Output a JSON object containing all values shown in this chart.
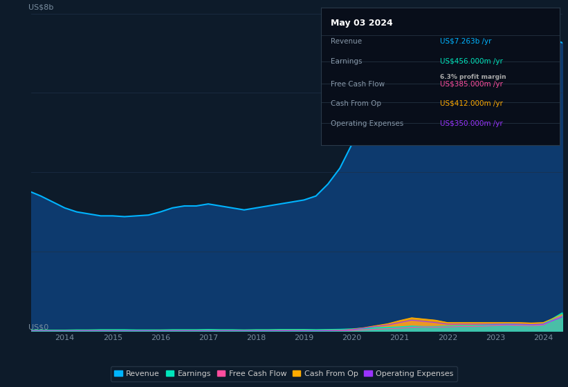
{
  "background_color": "#0d1b2a",
  "plot_bg_color": "#0d1b2a",
  "grid_color": "#1e3048",
  "axis_label_color": "#7a8ea0",
  "ylim": [
    0,
    8000000000.0
  ],
  "ylabel_top": "US$8b",
  "ylabel_bottom": "US$0",
  "years": [
    2013.3,
    2013.5,
    2013.75,
    2014.0,
    2014.25,
    2014.5,
    2014.75,
    2015.0,
    2015.25,
    2015.5,
    2015.75,
    2016.0,
    2016.25,
    2016.5,
    2016.75,
    2017.0,
    2017.25,
    2017.5,
    2017.75,
    2018.0,
    2018.25,
    2018.5,
    2018.75,
    2019.0,
    2019.25,
    2019.5,
    2019.75,
    2020.0,
    2020.25,
    2020.5,
    2020.75,
    2021.0,
    2021.25,
    2021.5,
    2021.75,
    2022.0,
    2022.25,
    2022.5,
    2022.75,
    2023.0,
    2023.25,
    2023.5,
    2023.75,
    2024.0,
    2024.4
  ],
  "revenue": [
    3500000000.0,
    3400000000.0,
    3250000000.0,
    3100000000.0,
    3000000000.0,
    2950000000.0,
    2900000000.0,
    2900000000.0,
    2880000000.0,
    2900000000.0,
    2920000000.0,
    3000000000.0,
    3100000000.0,
    3150000000.0,
    3150000000.0,
    3200000000.0,
    3150000000.0,
    3100000000.0,
    3050000000.0,
    3100000000.0,
    3150000000.0,
    3200000000.0,
    3250000000.0,
    3300000000.0,
    3400000000.0,
    3700000000.0,
    4100000000.0,
    4700000000.0,
    5200000000.0,
    5700000000.0,
    6000000000.0,
    6400000000.0,
    6600000000.0,
    6650000000.0,
    6600000000.0,
    6750000000.0,
    6850000000.0,
    7000000000.0,
    7100000000.0,
    7450000000.0,
    7550000000.0,
    7500000000.0,
    7400000000.0,
    7450000000.0,
    7263000000.0
  ],
  "earnings": [
    20000000.0,
    20000000.0,
    20000000.0,
    20000000.0,
    25000000.0,
    25000000.0,
    30000000.0,
    30000000.0,
    30000000.0,
    25000000.0,
    25000000.0,
    25000000.0,
    30000000.0,
    30000000.0,
    30000000.0,
    35000000.0,
    30000000.0,
    30000000.0,
    25000000.0,
    30000000.0,
    30000000.0,
    35000000.0,
    35000000.0,
    35000000.0,
    30000000.0,
    35000000.0,
    40000000.0,
    50000000.0,
    70000000.0,
    80000000.0,
    90000000.0,
    100000000.0,
    120000000.0,
    110000000.0,
    110000000.0,
    120000000.0,
    130000000.0,
    130000000.0,
    140000000.0,
    160000000.0,
    170000000.0,
    160000000.0,
    150000000.0,
    170000000.0,
    456000000.0
  ],
  "free_cash_flow": [
    5000000.0,
    5000000.0,
    5000000.0,
    5000000.0,
    5000000.0,
    6000000.0,
    6000000.0,
    6000000.0,
    5000000.0,
    5000000.0,
    5000000.0,
    6000000.0,
    6000000.0,
    6000000.0,
    6000000.0,
    7000000.0,
    6000000.0,
    6000000.0,
    6000000.0,
    7000000.0,
    7000000.0,
    7000000.0,
    7000000.0,
    6000000.0,
    5000000.0,
    7000000.0,
    9000000.0,
    12000000.0,
    25000000.0,
    40000000.0,
    55000000.0,
    70000000.0,
    90000000.0,
    100000000.0,
    95000000.0,
    100000000.0,
    110000000.0,
    110000000.0,
    120000000.0,
    140000000.0,
    150000000.0,
    140000000.0,
    130000000.0,
    150000000.0,
    385000000.0
  ],
  "cash_from_op": [
    8000000.0,
    8000000.0,
    8000000.0,
    8000000.0,
    9000000.0,
    9000000.0,
    9000000.0,
    9000000.0,
    8000000.0,
    8000000.0,
    8000000.0,
    9000000.0,
    9000000.0,
    9000000.0,
    9000000.0,
    9000000.0,
    9000000.0,
    9000000.0,
    9000000.0,
    10000000.0,
    10000000.0,
    12000000.0,
    12000000.0,
    12000000.0,
    9000000.0,
    12000000.0,
    15000000.0,
    40000000.0,
    80000000.0,
    130000000.0,
    180000000.0,
    260000000.0,
    330000000.0,
    300000000.0,
    270000000.0,
    210000000.0,
    210000000.0,
    210000000.0,
    210000000.0,
    210000000.0,
    210000000.0,
    210000000.0,
    200000000.0,
    210000000.0,
    412000000.0
  ],
  "operating_expenses": [
    2000000.0,
    2000000.0,
    2000000.0,
    2000000.0,
    3000000.0,
    3000000.0,
    3000000.0,
    3000000.0,
    3000000.0,
    3000000.0,
    3000000.0,
    3000000.0,
    3000000.0,
    3000000.0,
    3000000.0,
    3000000.0,
    3000000.0,
    3000000.0,
    3000000.0,
    4000000.0,
    4000000.0,
    5000000.0,
    5000000.0,
    5000000.0,
    4000000.0,
    6000000.0,
    10000000.0,
    30000000.0,
    70000000.0,
    110000000.0,
    150000000.0,
    210000000.0,
    270000000.0,
    240000000.0,
    210000000.0,
    170000000.0,
    170000000.0,
    170000000.0,
    170000000.0,
    170000000.0,
    170000000.0,
    170000000.0,
    160000000.0,
    170000000.0,
    350000000.0
  ],
  "revenue_color": "#00b4ff",
  "earnings_color": "#00e5bb",
  "fcf_color": "#ff4d9e",
  "cashop_color": "#ffaa00",
  "opex_color": "#9933ff",
  "revenue_fill": "#0d3a6e",
  "info_box_bg": "#080e1a",
  "info_box_border": "#2a3a4a",
  "info_date": "May 03 2024",
  "info_date_color": "#ffffff",
  "info_revenue_label": "Revenue",
  "info_revenue_value": "US$7.263b /yr",
  "info_revenue_color": "#00b4ff",
  "info_earnings_label": "Earnings",
  "info_earnings_value": "US$456.000m /yr",
  "info_earnings_color": "#00e5bb",
  "info_margin": "6.3% profit margin",
  "info_margin_bold": "6.3%",
  "info_fcf_label": "Free Cash Flow",
  "info_fcf_value": "US$385.000m /yr",
  "info_fcf_color": "#ff4d9e",
  "info_cashop_label": "Cash From Op",
  "info_cashop_value": "US$412.000m /yr",
  "info_cashop_color": "#ffaa00",
  "info_opex_label": "Operating Expenses",
  "info_opex_value": "US$350.000m /yr",
  "info_opex_color": "#9933ff",
  "legend_labels": [
    "Revenue",
    "Earnings",
    "Free Cash Flow",
    "Cash From Op",
    "Operating Expenses"
  ],
  "legend_colors": [
    "#00b4ff",
    "#00e5bb",
    "#ff4d9e",
    "#ffaa00",
    "#9933ff"
  ],
  "xtick_years": [
    2014,
    2015,
    2016,
    2017,
    2018,
    2019,
    2020,
    2021,
    2022,
    2023,
    2024
  ]
}
